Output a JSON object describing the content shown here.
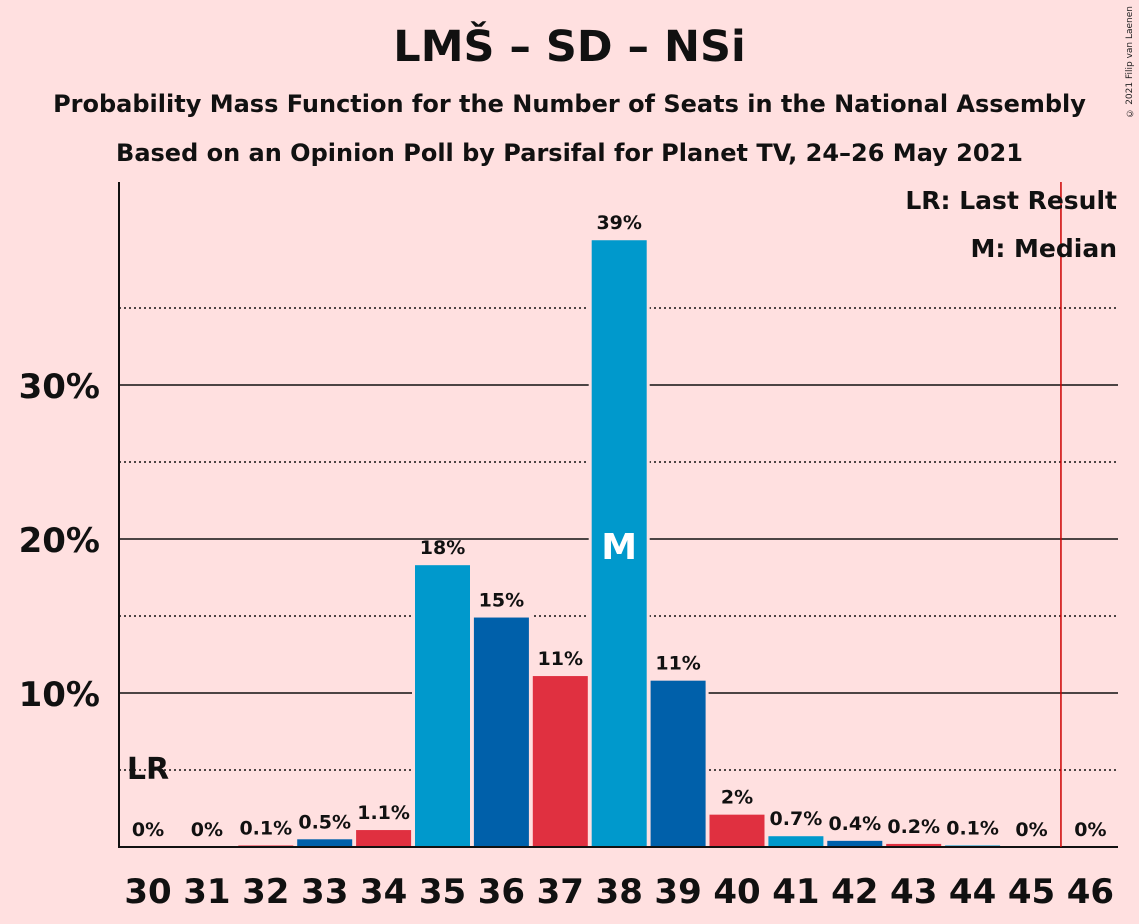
{
  "header": {
    "title": "LMŠ – SD – NSi",
    "subtitle_1": "Probability Mass Function for the Number of Seats in the National Assembly",
    "subtitle_2": "Based on an Opinion Poll by Parsifal for Planet TV, 24–26 May 2021",
    "copyright": "© 2021 Filip van Laenen"
  },
  "legend": {
    "last_result": "LR: Last Result",
    "median": "M: Median"
  },
  "chart_data": {
    "type": "bar",
    "categories": [
      "30",
      "31",
      "32",
      "33",
      "34",
      "35",
      "36",
      "37",
      "38",
      "39",
      "40",
      "41",
      "42",
      "43",
      "44",
      "45",
      "46"
    ],
    "values": [
      0,
      0,
      0.1,
      0.5,
      1.1,
      18.3,
      14.9,
      11.1,
      39.4,
      10.8,
      2.1,
      0.7,
      0.4,
      0.2,
      0.1,
      0,
      0
    ],
    "data_labels": [
      "0%",
      "0%",
      "0.1%",
      "0.5%",
      "1.1%",
      "18%",
      "15%",
      "11%",
      "39%",
      "11%",
      "2%",
      "0.7%",
      "0.4%",
      "0.2%",
      "0.1%",
      "0%",
      "0%"
    ],
    "bar_colors": [
      "#0099CC",
      "#0060AA",
      "#E03040",
      "#0060AA",
      "#E03040",
      "#0099CC",
      "#0060AA",
      "#E03040",
      "#0099CC",
      "#0060AA",
      "#E03040",
      "#0099CC",
      "#0060AA",
      "#E03040",
      "#0099CC",
      "#0060AA",
      "#E03040"
    ],
    "ylim": [
      0,
      43
    ],
    "y_ticks": [
      10,
      20,
      30
    ],
    "y_tick_labels": [
      "10%",
      "20%",
      "30%"
    ],
    "minor_gridlines": [
      5,
      15,
      25,
      35
    ],
    "last_result_category": "30",
    "last_result_label": "LR",
    "median_category": "38",
    "median_label": "M",
    "majority_line_after": "45",
    "majority_line_color": "#CC0000"
  }
}
